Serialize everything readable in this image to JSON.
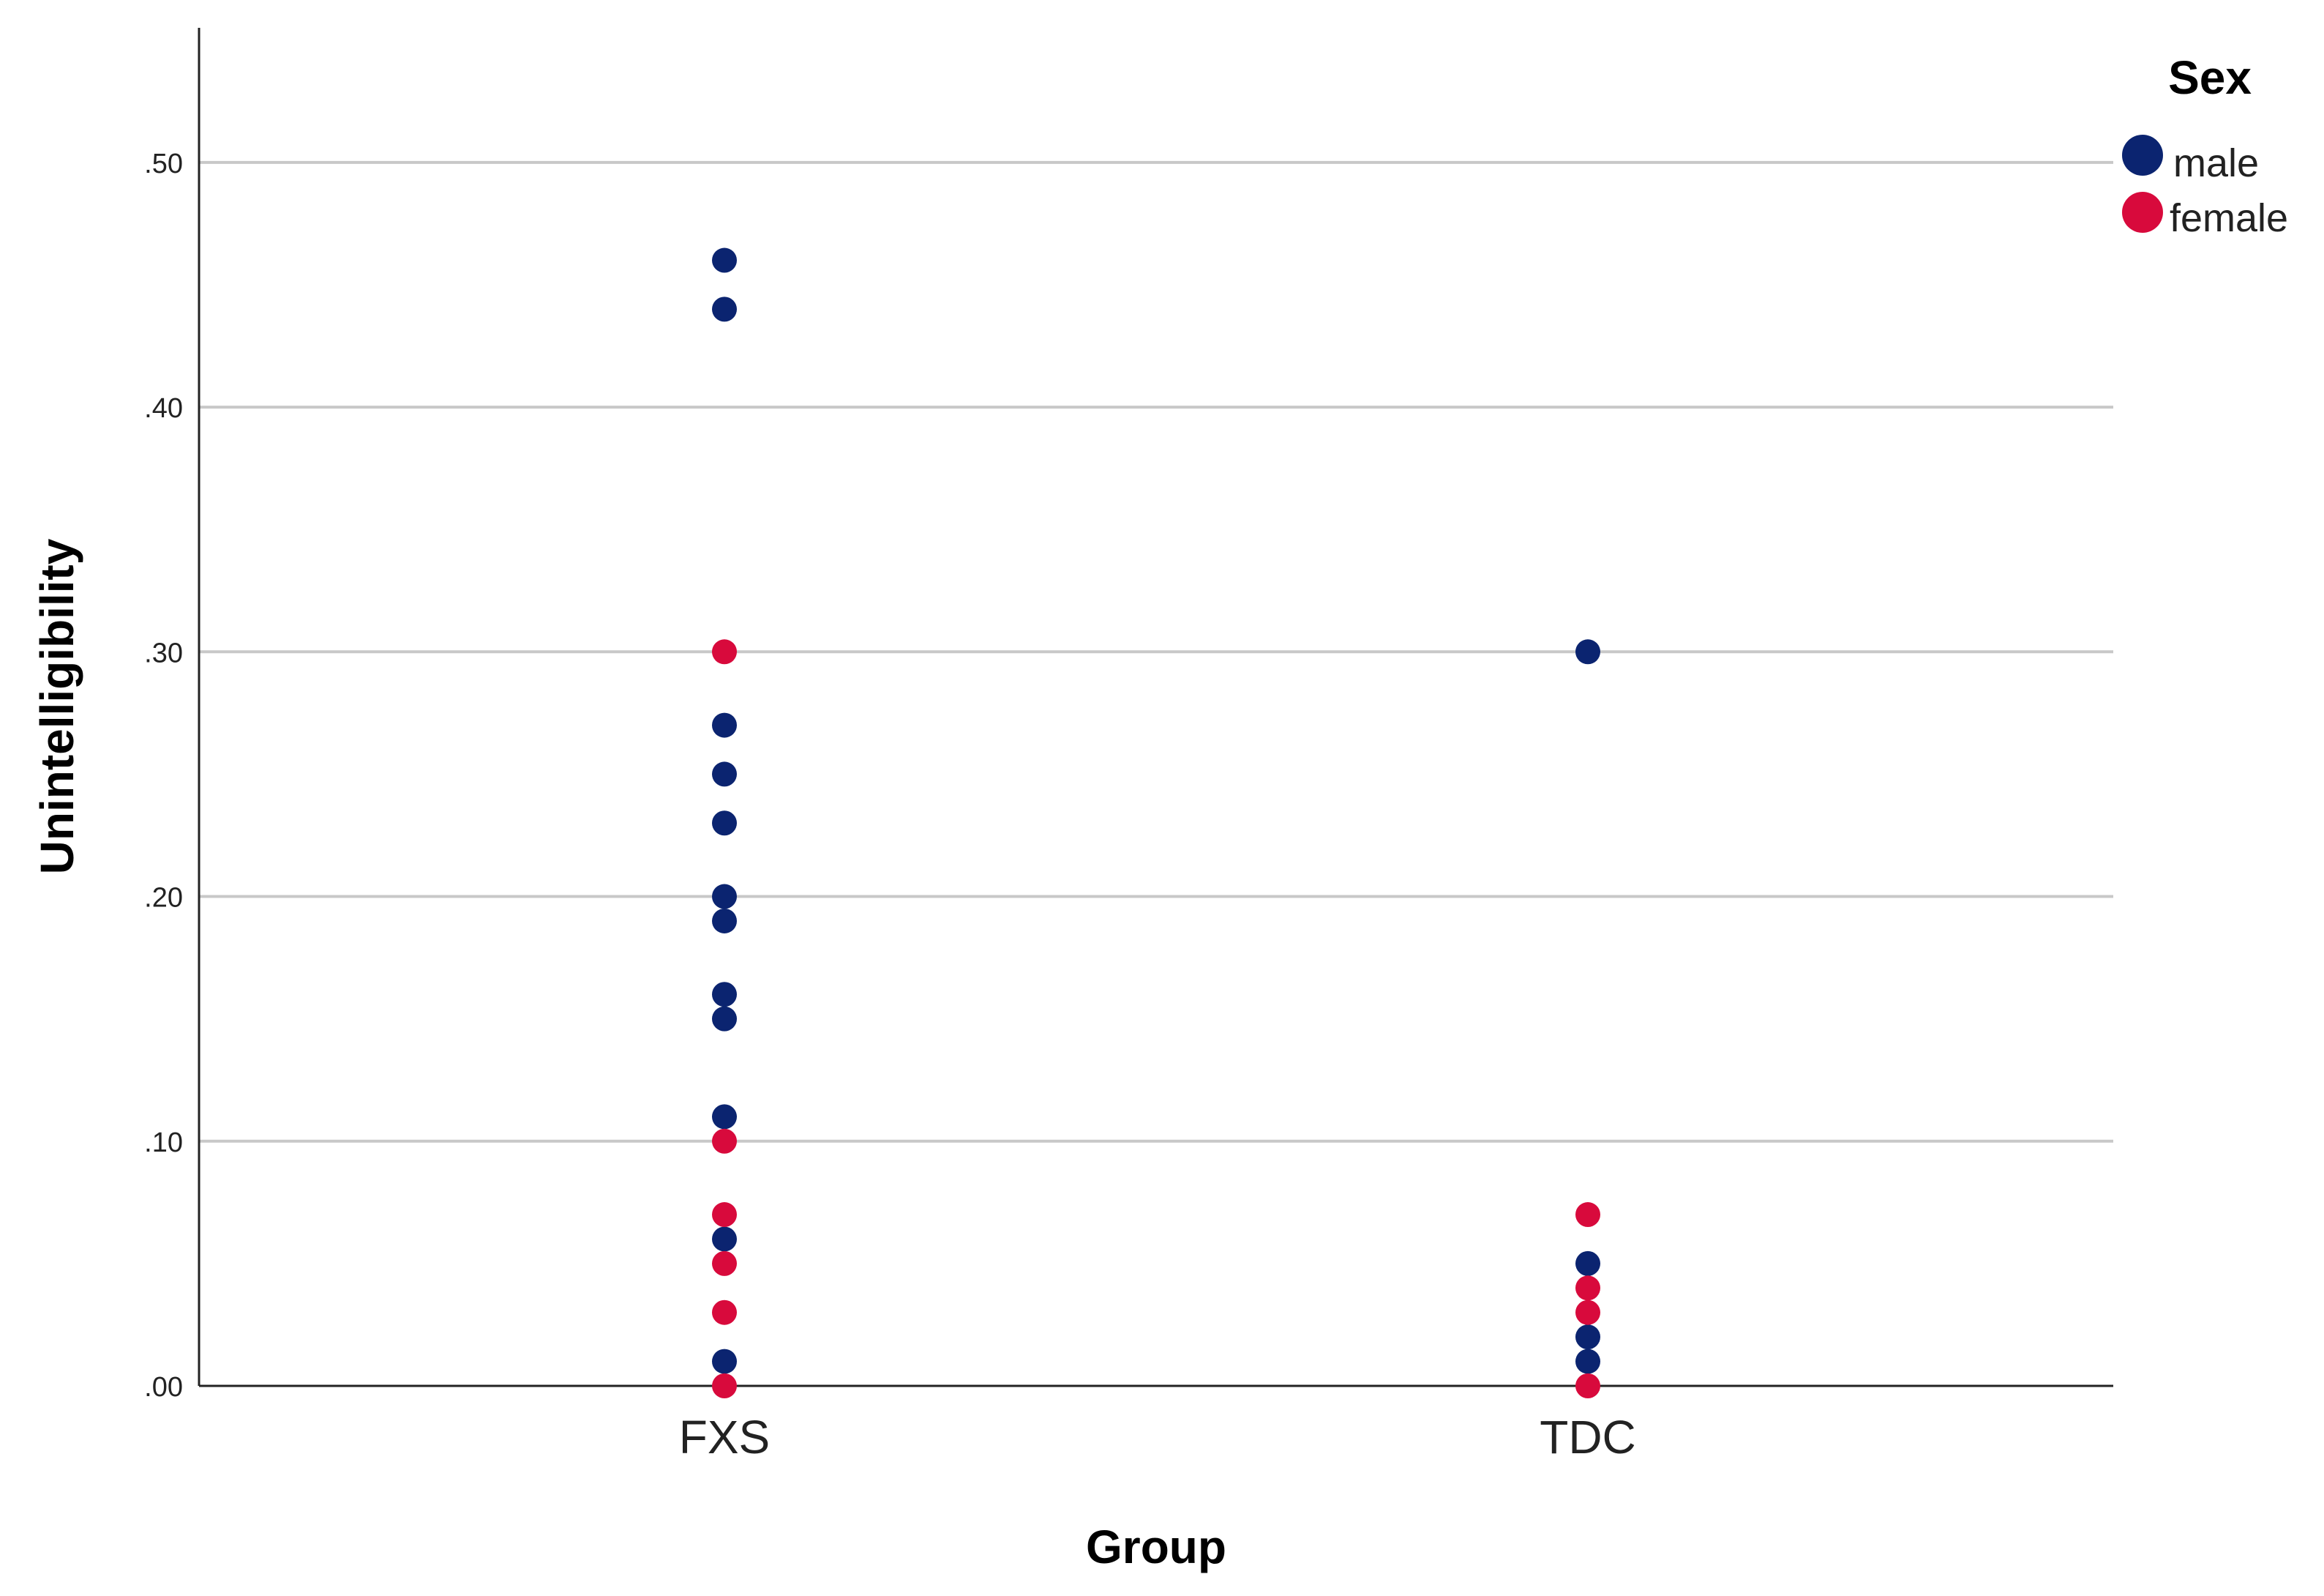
{
  "chart_data": {
    "type": "scatter",
    "xlabel": "Group",
    "ylabel": "Unintelligibility",
    "categories": [
      "FXS",
      "TDC"
    ],
    "ylim": [
      0,
      0.555
    ],
    "yticks": [
      {
        "value": 0.0,
        "label": ".00"
      },
      {
        "value": 0.1,
        "label": ".10"
      },
      {
        "value": 0.2,
        "label": ".20"
      },
      {
        "value": 0.3,
        "label": ".30"
      },
      {
        "value": 0.4,
        "label": ".40"
      },
      {
        "value": 0.5,
        "label": ".50"
      }
    ],
    "grid": "horizontal",
    "legend": {
      "title": "Sex",
      "position": "top-right"
    },
    "series": [
      {
        "name": "male",
        "color": "#0b2470",
        "points": [
          {
            "x": "FXS",
            "y": 0.46
          },
          {
            "x": "FXS",
            "y": 0.44
          },
          {
            "x": "FXS",
            "y": 0.27
          },
          {
            "x": "FXS",
            "y": 0.25
          },
          {
            "x": "FXS",
            "y": 0.23
          },
          {
            "x": "FXS",
            "y": 0.2
          },
          {
            "x": "FXS",
            "y": 0.19
          },
          {
            "x": "FXS",
            "y": 0.16
          },
          {
            "x": "FXS",
            "y": 0.15
          },
          {
            "x": "FXS",
            "y": 0.11
          },
          {
            "x": "FXS",
            "y": 0.06
          },
          {
            "x": "FXS",
            "y": 0.01
          },
          {
            "x": "TDC",
            "y": 0.3
          },
          {
            "x": "TDC",
            "y": 0.05
          },
          {
            "x": "TDC",
            "y": 0.02
          },
          {
            "x": "TDC",
            "y": 0.01
          }
        ]
      },
      {
        "name": "female",
        "color": "#d80a3c",
        "points": [
          {
            "x": "FXS",
            "y": 0.3
          },
          {
            "x": "FXS",
            "y": 0.1
          },
          {
            "x": "FXS",
            "y": 0.07
          },
          {
            "x": "FXS",
            "y": 0.05
          },
          {
            "x": "FXS",
            "y": 0.03
          },
          {
            "x": "FXS",
            "y": 0.0
          },
          {
            "x": "TDC",
            "y": 0.07
          },
          {
            "x": "TDC",
            "y": 0.04
          },
          {
            "x": "TDC",
            "y": 0.03
          },
          {
            "x": "TDC",
            "y": 0.0
          }
        ]
      }
    ]
  }
}
